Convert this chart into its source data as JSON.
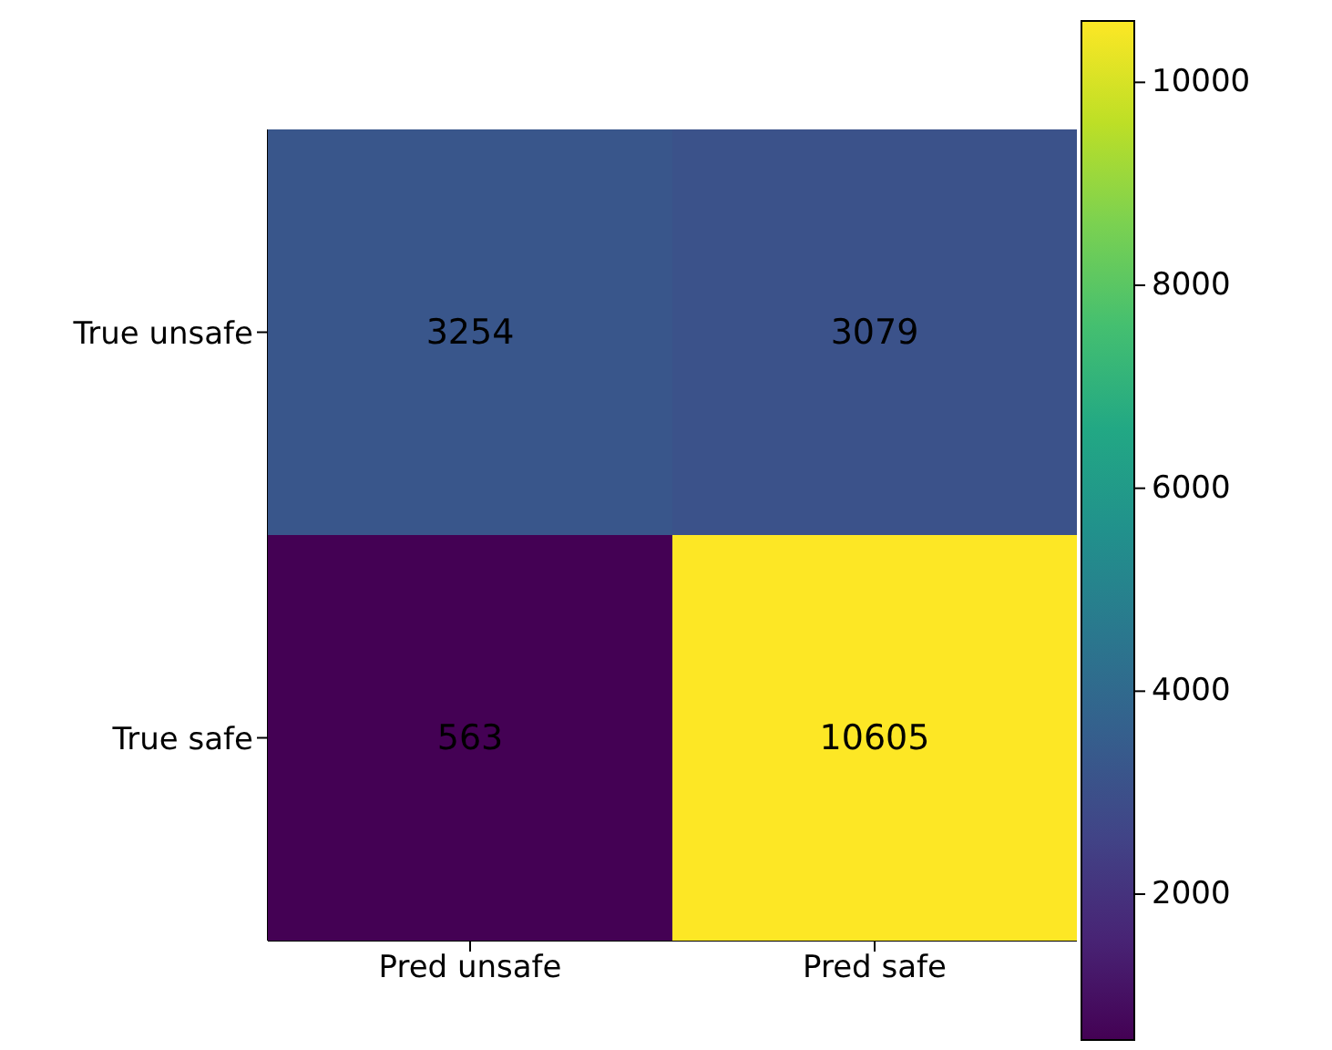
{
  "chart_data": {
    "type": "heatmap",
    "categories": [
      "Pred unsafe",
      "Pred safe"
    ],
    "y_categories": [
      "True unsafe",
      "True safe"
    ],
    "cells": [
      [
        3254,
        3079
      ],
      [
        563,
        10605
      ]
    ],
    "clim": [
      563,
      10605
    ],
    "cticks": [
      2000,
      4000,
      6000,
      8000,
      10000
    ],
    "data_labels": true
  }
}
